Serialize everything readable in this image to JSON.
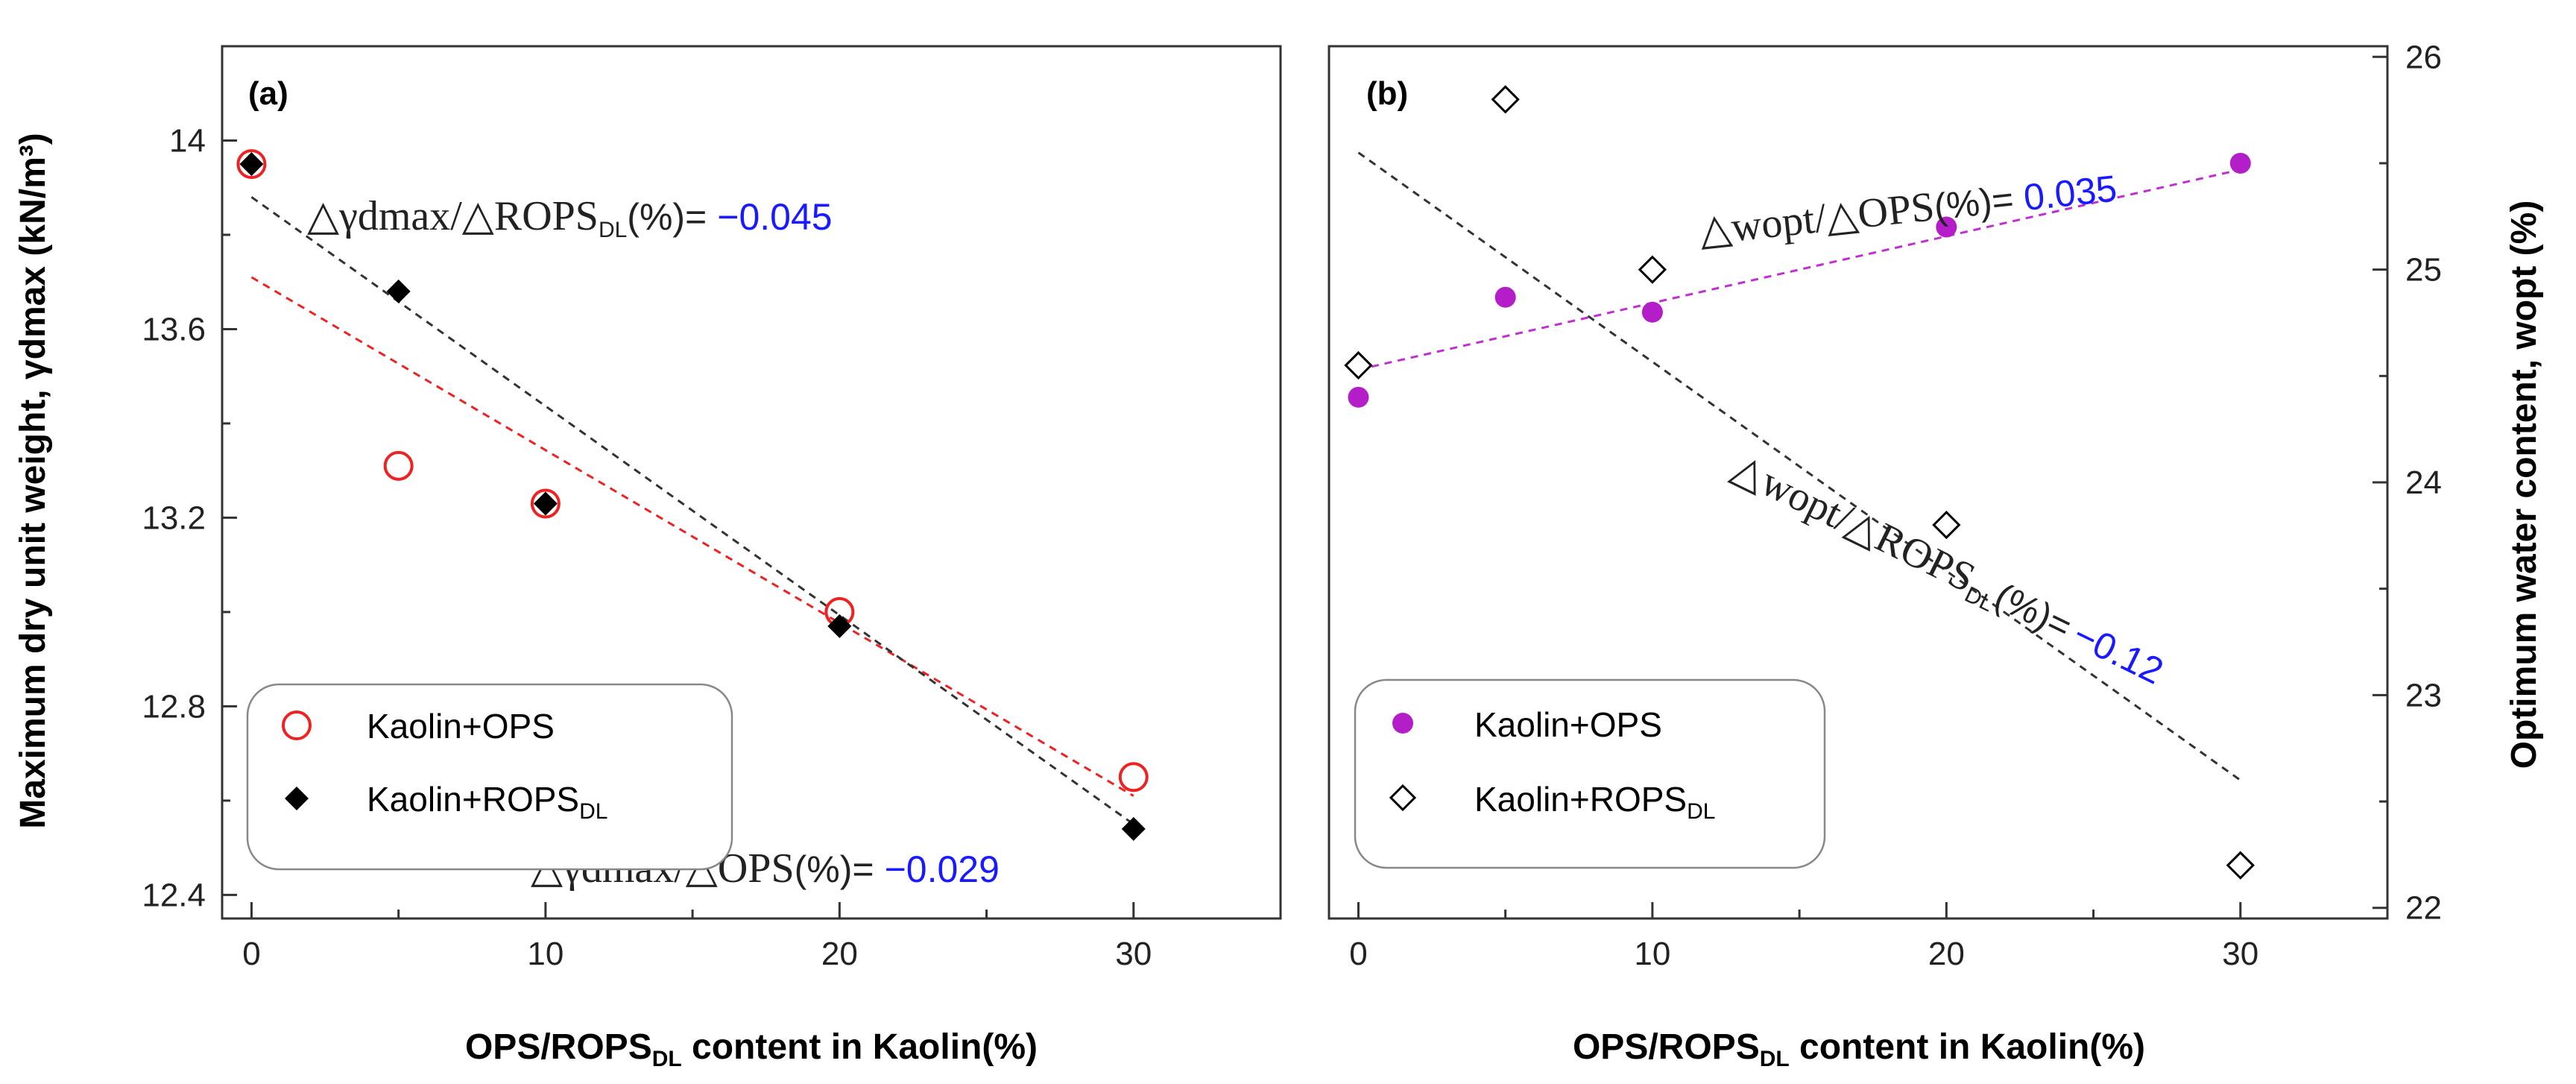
{
  "chart_data": [
    {
      "type": "scatter",
      "panel_label": "(a)",
      "xlabel_main": "OPS/ROPS",
      "xlabel_sub": "DL",
      "xlabel_tail": " content in Kaolin(%)",
      "ylabel": "Maximum dry unit weight, γdmax (kN/m³)",
      "xlim": [
        -1,
        35
      ],
      "ylim": [
        12.35,
        14.2
      ],
      "xticks": [
        "0",
        "10",
        "20",
        "30"
      ],
      "xtick_values": [
        0,
        10,
        20,
        30
      ],
      "yticks": [
        "12.4",
        "12.8",
        "13.2",
        "13.6",
        "14"
      ],
      "ytick_values": [
        12.4,
        12.8,
        13.2,
        13.6,
        14.0
      ],
      "series": [
        {
          "name": "Kaolin+OPS",
          "marker": "open-circle",
          "color": "#ee2222",
          "x": [
            0,
            5,
            10,
            20,
            30
          ],
          "y": [
            13.95,
            13.31,
            13.23,
            13.0,
            12.65
          ],
          "fit": {
            "x": [
              0,
              30
            ],
            "y": [
              13.71,
              12.61
            ],
            "color": "#ee2222"
          }
        },
        {
          "name": "Kaolin+ROPS",
          "name_sub": "DL",
          "marker": "filled-diamond",
          "color": "#000000",
          "x": [
            0,
            5,
            10,
            20,
            30
          ],
          "y": [
            13.95,
            13.68,
            13.23,
            12.97,
            12.54
          ],
          "fit": {
            "x": [
              0,
              30
            ],
            "y": [
              13.88,
              12.55
            ],
            "color": "#333333"
          }
        }
      ],
      "annotations": [
        {
          "lhs": "△γdmax/△ROPS",
          "sub": "DL",
          "mid": "(%)=",
          "value": "−0.045"
        },
        {
          "lhs": "△γdmax/△OPS",
          "mid": "(%)=",
          "value": "−0.029"
        }
      ]
    },
    {
      "type": "scatter",
      "panel_label": "(b)",
      "xlabel_main": "OPS/ROPS",
      "xlabel_sub": "DL",
      "xlabel_tail": " content in Kaolin(%)",
      "ylabel": "Optimum water content, wopt (%)",
      "xlim": [
        -1,
        35
      ],
      "ylim": [
        21.95,
        26.05
      ],
      "xticks": [
        "0",
        "10",
        "20",
        "30"
      ],
      "xtick_values": [
        0,
        10,
        20,
        30
      ],
      "yticks": [
        "22",
        "23",
        "24",
        "25",
        "26"
      ],
      "ytick_values": [
        22,
        23,
        24,
        25,
        26
      ],
      "series": [
        {
          "name": "Kaolin+OPS",
          "marker": "filled-circle",
          "color": "#b41ec8",
          "x": [
            0,
            5,
            10,
            20,
            30
          ],
          "y": [
            24.4,
            24.87,
            24.8,
            25.2,
            25.5
          ],
          "fit": {
            "x": [
              0,
              30
            ],
            "y": [
              24.53,
              25.47
            ],
            "color": "#c030d0"
          }
        },
        {
          "name": "Kaolin+ROPS",
          "name_sub": "DL",
          "marker": "open-diamond",
          "color": "#000000",
          "x": [
            0,
            5,
            10,
            20,
            30
          ],
          "y": [
            24.55,
            25.8,
            25.0,
            23.8,
            22.2
          ],
          "fit": {
            "x": [
              0,
              30
            ],
            "y": [
              25.55,
              22.6
            ],
            "color": "#333333"
          }
        }
      ],
      "annotations": [
        {
          "lhs": "△wopt/△OPS",
          "mid": "(%)=",
          "value": "0.035"
        },
        {
          "lhs": "△wopt/△ROPS",
          "sub": "DL",
          "mid": "(%)=",
          "value": "−0.12"
        }
      ]
    }
  ]
}
